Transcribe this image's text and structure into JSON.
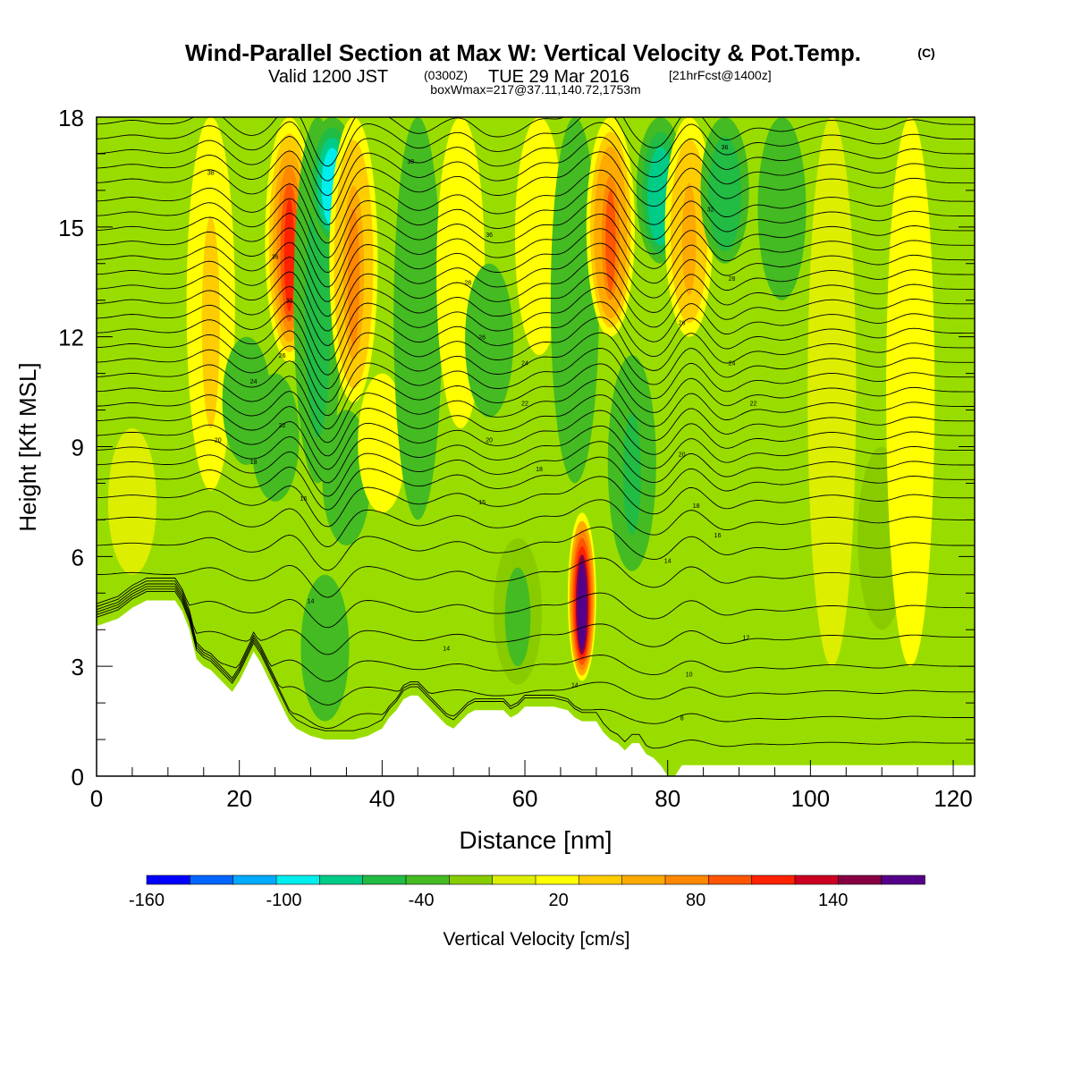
{
  "header": {
    "title": "Wind-Parallel Section at Max W: Vertical Velocity & Pot.Temp.",
    "title_mark": "(C)",
    "subtitle_valid": "Valid 1200 JST",
    "subtitle_utc": "(0300Z)",
    "subtitle_date": "TUE 29 Mar 2016",
    "subtitle_fcst": "[21hrFcst@1400z]",
    "subtitle_box": "boxWmax=217@37.11,140.72,1753m"
  },
  "chart_data": {
    "type": "heatmap",
    "title": "Wind-Parallel Section at Max W: Vertical Velocity & Pot.Temp.",
    "xlabel": "Distance [nm]",
    "ylabel": "Height [Kft MSL]",
    "xlim": [
      0,
      123
    ],
    "ylim": [
      0,
      18
    ],
    "x_ticks": [
      "0",
      "20",
      "40",
      "60",
      "80",
      "100",
      "120"
    ],
    "x_tick_values": [
      0,
      20,
      40,
      60,
      80,
      100,
      120
    ],
    "y_ticks": [
      "0",
      "3",
      "6",
      "9",
      "12",
      "15",
      "18"
    ],
    "y_tick_values": [
      0,
      3,
      6,
      9,
      12,
      15,
      18
    ],
    "colorbar": {
      "label": "Vertical Velocity [cm/s]",
      "tick_labels": [
        "-160",
        "-100",
        "-40",
        "20",
        "80",
        "140"
      ],
      "tick_values": [
        -160,
        -100,
        -40,
        20,
        80,
        140
      ],
      "bin_edges": [
        -160,
        -140,
        -120,
        -100,
        -80,
        -60,
        -40,
        -20,
        0,
        20,
        40,
        60,
        80,
        100,
        120,
        140,
        160,
        180
      ],
      "colors": [
        "#0000ff",
        "#0066ff",
        "#00aaff",
        "#00eeee",
        "#00cc88",
        "#22bb44",
        "#44bb22",
        "#88cc00",
        "#ddee00",
        "#ffff00",
        "#ffcc00",
        "#ffaa00",
        "#ff8800",
        "#ff5500",
        "#ff2200",
        "#cc0022",
        "#880044",
        "#550088"
      ]
    },
    "terrain_kft": [
      [
        0,
        4.1
      ],
      [
        3,
        4.3
      ],
      [
        5,
        4.6
      ],
      [
        7,
        4.8
      ],
      [
        9,
        4.8
      ],
      [
        11,
        4.8
      ],
      [
        12,
        4.5
      ],
      [
        13,
        4.0
      ],
      [
        14,
        3.2
      ],
      [
        15,
        3.0
      ],
      [
        16,
        2.9
      ],
      [
        17,
        2.7
      ],
      [
        18,
        2.5
      ],
      [
        19,
        2.3
      ],
      [
        20,
        2.6
      ],
      [
        21,
        3.0
      ],
      [
        22,
        3.4
      ],
      [
        23,
        3.1
      ],
      [
        24,
        2.7
      ],
      [
        25,
        2.3
      ],
      [
        26,
        1.9
      ],
      [
        27,
        1.5
      ],
      [
        28,
        1.3
      ],
      [
        30,
        1.1
      ],
      [
        32,
        1.0
      ],
      [
        34,
        1.0
      ],
      [
        36,
        1.0
      ],
      [
        38,
        1.1
      ],
      [
        40,
        1.3
      ],
      [
        41,
        1.6
      ],
      [
        42,
        1.8
      ],
      [
        43,
        2.1
      ],
      [
        44,
        2.2
      ],
      [
        45,
        2.2
      ],
      [
        46,
        2.0
      ],
      [
        47,
        1.8
      ],
      [
        48,
        1.6
      ],
      [
        49,
        1.4
      ],
      [
        50,
        1.3
      ],
      [
        51,
        1.5
      ],
      [
        52,
        1.7
      ],
      [
        53,
        1.8
      ],
      [
        55,
        1.8
      ],
      [
        57,
        1.8
      ],
      [
        58,
        1.6
      ],
      [
        59,
        1.7
      ],
      [
        60,
        1.9
      ],
      [
        62,
        1.9
      ],
      [
        64,
        1.9
      ],
      [
        66,
        1.8
      ],
      [
        67,
        1.6
      ],
      [
        68,
        1.5
      ],
      [
        70,
        1.5
      ],
      [
        71,
        1.2
      ],
      [
        72,
        1.0
      ],
      [
        73,
        0.9
      ],
      [
        74,
        0.7
      ],
      [
        75,
        0.9
      ],
      [
        76,
        0.9
      ],
      [
        77,
        0.6
      ],
      [
        78,
        0.5
      ],
      [
        79,
        0.3
      ],
      [
        80,
        0.0
      ],
      [
        81,
        0.0
      ],
      [
        82,
        0.3
      ],
      [
        90,
        0.3
      ],
      [
        123,
        0.3
      ]
    ],
    "w_features": [
      {
        "x": 16,
        "y_top": 18,
        "y_bottom": 7.8,
        "w": 50
      },
      {
        "x": 21,
        "y_top": 12,
        "y_bottom": 8.5,
        "w": -35
      },
      {
        "x": 25,
        "y_top": 11,
        "y_bottom": 7.5,
        "w": -40
      },
      {
        "x": 27,
        "y_top": 18,
        "y_bottom": 11.3,
        "w": 120
      },
      {
        "x": 31,
        "y_top": 18,
        "y_bottom": 8,
        "w": -45
      },
      {
        "x": 33,
        "y_top": 18,
        "y_bottom": 14.5,
        "w": -100
      },
      {
        "x": 36,
        "y_top": 18,
        "y_bottom": 10.2,
        "w": 90
      },
      {
        "x": 35,
        "y_top": 10,
        "y_bottom": 6.3,
        "w": -40
      },
      {
        "x": 40,
        "y_top": 11,
        "y_bottom": 7.2,
        "w": 30
      },
      {
        "x": 45,
        "y_top": 18,
        "y_bottom": 7.0,
        "w": -35
      },
      {
        "x": 51,
        "y_top": 18,
        "y_bottom": 9.5,
        "w": 30
      },
      {
        "x": 55,
        "y_top": 14,
        "y_bottom": 9.8,
        "w": -40
      },
      {
        "x": 62,
        "y_top": 18,
        "y_bottom": 11.5,
        "w": 30
      },
      {
        "x": 67,
        "y_top": 18,
        "y_bottom": 8.0,
        "w": -40
      },
      {
        "x": 68,
        "y_top": 7.2,
        "y_bottom": 2.6,
        "w": 217
      },
      {
        "x": 72,
        "y_top": 18,
        "y_bottom": 12.0,
        "w": 110
      },
      {
        "x": 75,
        "y_top": 11.5,
        "y_bottom": 5.6,
        "w": -50
      },
      {
        "x": 79,
        "y_top": 18,
        "y_bottom": 14.0,
        "w": -80
      },
      {
        "x": 83,
        "y_top": 18,
        "y_bottom": 12.0,
        "w": 70
      },
      {
        "x": 88,
        "y_top": 18,
        "y_bottom": 14.0,
        "w": -60
      },
      {
        "x": 96,
        "y_top": 18,
        "y_bottom": 13.0,
        "w": -25
      },
      {
        "x": 103,
        "y_top": 18,
        "y_bottom": 3.0,
        "w": 15
      },
      {
        "x": 110,
        "y_top": 9,
        "y_bottom": 4.0,
        "w": -20
      },
      {
        "x": 114,
        "y_top": 18,
        "y_bottom": 3.0,
        "w": 20
      },
      {
        "x": 5,
        "y_top": 9.5,
        "y_bottom": 5.5,
        "w": 15
      },
      {
        "x": 59,
        "y_top": 6.5,
        "y_bottom": 2.5,
        "w": -30
      },
      {
        "x": 32,
        "y_top": 5.5,
        "y_bottom": 1.5,
        "w": -25
      }
    ],
    "theta_contour_labels": [
      {
        "x": 16,
        "y": 16.5,
        "text": "38"
      },
      {
        "x": 44,
        "y": 16.8,
        "text": "38"
      },
      {
        "x": 88,
        "y": 17.2,
        "text": "36"
      },
      {
        "x": 25,
        "y": 14.2,
        "text": "36"
      },
      {
        "x": 55,
        "y": 14.8,
        "text": "36"
      },
      {
        "x": 86,
        "y": 15.5,
        "text": "32"
      },
      {
        "x": 27,
        "y": 13.0,
        "text": "30"
      },
      {
        "x": 52,
        "y": 13.5,
        "text": "28"
      },
      {
        "x": 89,
        "y": 13.6,
        "text": "28"
      },
      {
        "x": 54,
        "y": 12.0,
        "text": "26"
      },
      {
        "x": 82,
        "y": 12.4,
        "text": "26"
      },
      {
        "x": 26,
        "y": 11.5,
        "text": "26"
      },
      {
        "x": 22,
        "y": 10.8,
        "text": "24"
      },
      {
        "x": 60,
        "y": 11.3,
        "text": "24"
      },
      {
        "x": 89,
        "y": 11.3,
        "text": "24"
      },
      {
        "x": 60,
        "y": 10.2,
        "text": "22"
      },
      {
        "x": 92,
        "y": 10.2,
        "text": "22"
      },
      {
        "x": 26,
        "y": 9.6,
        "text": "22"
      },
      {
        "x": 17,
        "y": 9.2,
        "text": "20"
      },
      {
        "x": 55,
        "y": 9.2,
        "text": "20"
      },
      {
        "x": 82,
        "y": 8.8,
        "text": "20"
      },
      {
        "x": 22,
        "y": 8.6,
        "text": "18"
      },
      {
        "x": 62,
        "y": 8.4,
        "text": "18"
      },
      {
        "x": 29,
        "y": 7.6,
        "text": "16"
      },
      {
        "x": 54,
        "y": 7.5,
        "text": "15"
      },
      {
        "x": 84,
        "y": 7.4,
        "text": "18"
      },
      {
        "x": 87,
        "y": 6.6,
        "text": "16"
      },
      {
        "x": 80,
        "y": 5.9,
        "text": "14"
      },
      {
        "x": 30,
        "y": 4.8,
        "text": "14"
      },
      {
        "x": 49,
        "y": 3.5,
        "text": "14"
      },
      {
        "x": 67,
        "y": 2.5,
        "text": "14"
      },
      {
        "x": 91,
        "y": 3.8,
        "text": "12"
      },
      {
        "x": 83,
        "y": 2.8,
        "text": "10"
      },
      {
        "x": 82,
        "y": 1.6,
        "text": "8"
      }
    ],
    "theta_levels_kft": [
      17.8,
      17.4,
      17.0,
      16.6,
      16.2,
      15.7,
      15.3,
      14.9,
      14.5,
      14.1,
      13.7,
      13.3,
      12.9,
      12.5,
      12.1,
      11.7,
      11.3,
      10.9,
      10.5,
      10.1,
      9.7,
      9.3,
      8.9,
      8.5,
      8.1,
      7.6,
      7.0,
      6.3,
      5.5,
      4.6,
      3.8,
      3.0,
      2.3,
      1.6,
      0.9
    ]
  }
}
